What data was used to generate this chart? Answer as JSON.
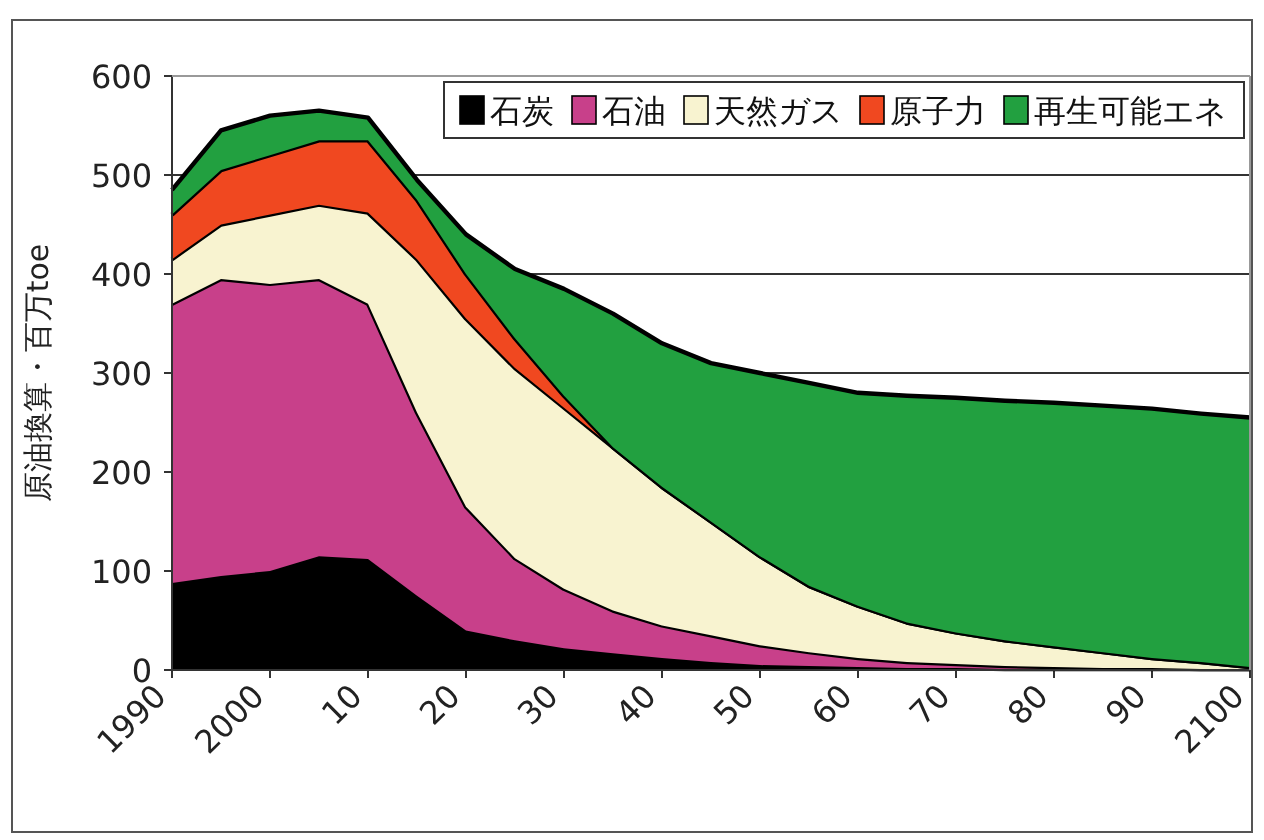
{
  "chart_data": {
    "type": "area",
    "stacked": true,
    "ylabel": "原油換算・百万toe",
    "x": [
      1990,
      1995,
      2000,
      2005,
      2010,
      2015,
      2020,
      2025,
      2030,
      2035,
      2040,
      2045,
      2050,
      2055,
      2060,
      2065,
      2070,
      2075,
      2080,
      2085,
      2090,
      2095,
      2100
    ],
    "xlim": [
      1990,
      2100
    ],
    "xticks": [
      1990,
      2000,
      {
        "value": 2010,
        "label": "10"
      },
      {
        "value": 2020,
        "label": "20"
      },
      {
        "value": 2030,
        "label": "30"
      },
      {
        "value": 2040,
        "label": "40"
      },
      {
        "value": 2050,
        "label": "50"
      },
      {
        "value": 2060,
        "label": "60"
      },
      {
        "value": 2070,
        "label": "70"
      },
      {
        "value": 2080,
        "label": "80"
      },
      {
        "value": 2090,
        "label": "90"
      },
      2100
    ],
    "ylim": [
      0,
      600
    ],
    "yticks": [
      0,
      100,
      200,
      300,
      400,
      500,
      600
    ],
    "grid": "y",
    "legend": "top right",
    "series": [
      {
        "name": "石炭",
        "color": "#000000",
        "values": [
          88,
          95,
          100,
          115,
          112,
          75,
          40,
          30,
          22,
          17,
          12,
          8,
          5,
          4,
          3,
          2,
          2,
          1,
          1,
          1,
          1,
          1,
          1
        ]
      },
      {
        "name": "石油",
        "color": "#c8408a",
        "values": [
          282,
          300,
          290,
          280,
          258,
          185,
          125,
          83,
          60,
          43,
          33,
          27,
          20,
          14,
          9,
          6,
          4,
          3,
          2,
          1,
          1,
          0,
          0
        ]
      },
      {
        "name": "天然ガス",
        "color": "#f8f3d0",
        "values": [
          45,
          55,
          70,
          75,
          92,
          155,
          190,
          192,
          183,
          165,
          140,
          115,
          90,
          67,
          53,
          40,
          32,
          26,
          21,
          16,
          10,
          7,
          2
        ]
      },
      {
        "name": "原子力",
        "color": "#f04820",
        "values": [
          45,
          55,
          60,
          65,
          73,
          60,
          45,
          30,
          12,
          0,
          0,
          0,
          0,
          0,
          0,
          0,
          0,
          0,
          0,
          0,
          0,
          0,
          0
        ]
      },
      {
        "name": "再生可能エネ",
        "color": "#22a040",
        "values": [
          25,
          40,
          40,
          30,
          23,
          20,
          40,
          70,
          108,
          135,
          145,
          160,
          185,
          205,
          215,
          229,
          237,
          242,
          246,
          249,
          252,
          251,
          252
        ]
      }
    ]
  }
}
